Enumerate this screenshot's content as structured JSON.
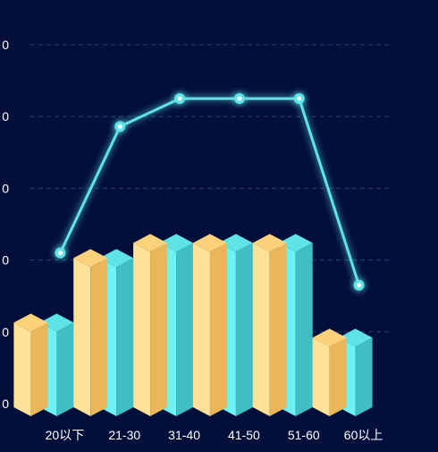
{
  "chart_data": {
    "type": "bar",
    "categories": [
      "20以下",
      "21-30",
      "31-40",
      "41-50",
      "51-60",
      "60以上"
    ],
    "y_tick_labels": [
      "0",
      "0",
      "0",
      "0",
      "0",
      "0"
    ],
    "ylim": [
      0,
      5
    ],
    "grid": true,
    "series": [
      {
        "kind": "bar",
        "color": "#5fe3e6",
        "values": [
          1.13,
          2.03,
          2.24,
          2.24,
          2.24,
          0.92
        ]
      },
      {
        "kind": "bar",
        "color": "#fbd27a",
        "values": [
          1.13,
          2.03,
          2.24,
          2.24,
          2.24,
          0.92
        ]
      },
      {
        "kind": "line",
        "color": "#5fe3e6",
        "values": [
          2.1,
          3.86,
          4.25,
          4.25,
          4.25,
          1.65
        ]
      }
    ]
  },
  "colors": {
    "background": "#020f3a",
    "grid": "#1f4766",
    "teal_light": "#6ff2f4",
    "teal_mid": "#5fe3e6",
    "teal_dark": "#3fbfc4",
    "gold_light": "#ffe19a",
    "gold_mid": "#fbd27a",
    "gold_dark": "#e9b65a",
    "label": "#ffffff"
  }
}
